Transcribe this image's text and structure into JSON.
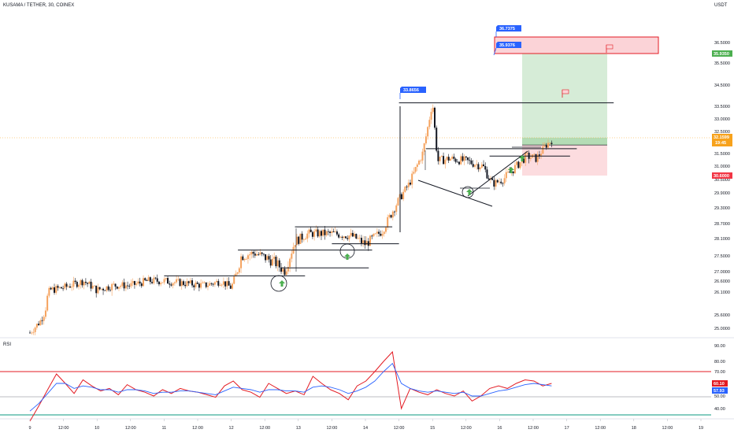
{
  "header": {
    "symbol_title": "KUSAMA / TETHER, 30, COINEX",
    "currency": "USDT",
    "rsi_label": "RSI"
  },
  "colors": {
    "up": "#f5a25d",
    "down": "#131722",
    "rsi_line": "#e31b23",
    "rsi_ma": "#2962ff",
    "rsi_upper_band": "#e31b23",
    "rsi_lower_band": "#089981",
    "target_zone": "#c8e6c9",
    "stop_zone": "#fbd3d7",
    "price_label": "#f7a21c",
    "target_label": "#4caf50",
    "stop_label": "#f23645",
    "callout": "#2962ff",
    "marker_arrow": "#4caf50"
  },
  "chart_data": {
    "type": "candlestick",
    "title": "KUSAMA / TETHER, 30, COINEX",
    "price_axis": {
      "ticks": [
        "36.5000",
        "35.5000",
        "34.5000",
        "33.5000",
        "33.0000",
        "32.5000",
        "31.5000",
        "31.0000",
        "30.5000",
        "29.9000",
        "29.3000",
        "28.7000",
        "28.1000",
        "27.5000",
        "27.0000",
        "26.6000",
        "26.1000",
        "25.6000",
        "25.0000"
      ],
      "range": [
        24.7,
        37.3
      ]
    },
    "time_axis": {
      "labels": [
        "9",
        "12:00",
        "10",
        "12:00",
        "11",
        "12:00",
        "12",
        "12:00",
        "13",
        "12:00",
        "14",
        "12:00",
        "15",
        "12:00",
        "16",
        "12:00",
        "17",
        "12:00",
        "18",
        "12:00",
        "19"
      ]
    },
    "last_price": "32.1599",
    "countdown": "19:45",
    "take_profit_label": "35.9350",
    "stop_loss_label": "30.6000",
    "entry_price": 31.79,
    "callouts": [
      "33.8656",
      "36.7375",
      "35.9376"
    ],
    "channels": [
      {
        "from_time": 4.0,
        "to_time": 8.2,
        "price": 26.82
      },
      {
        "from_time": 6.2,
        "to_time": 10.2,
        "price": 27.7
      },
      {
        "from_time": 7.5,
        "to_time": 10.1,
        "price": 27.12
      },
      {
        "from_time": 7.9,
        "to_time": 10.8,
        "price": 28.57
      },
      {
        "from_time": 9.0,
        "to_time": 11.0,
        "price": 27.92
      },
      {
        "from_time": 11.0,
        "to_time": 17.4,
        "price": 33.66
      },
      {
        "from_time": 11.8,
        "to_time": 16.3,
        "price": 31.72
      },
      {
        "from_time": 13.7,
        "to_time": 16.1,
        "price": 31.4
      }
    ],
    "rsi": {
      "label": "RSI",
      "value": "60.10",
      "ma_value": "57.93",
      "levels": [
        70,
        30
      ],
      "ticks": [
        "90.00",
        "80.00",
        "70.00",
        "60.00",
        "50.00",
        "40.00"
      ],
      "range": [
        32,
        92
      ],
      "series": [
        {
          "name": "RSI",
          "values": [
            30,
            42,
            55,
            68,
            60,
            52,
            63,
            58,
            54,
            56,
            51,
            59,
            55,
            53,
            50,
            55,
            52,
            56,
            54,
            53,
            51,
            49,
            58,
            62,
            55,
            53,
            49,
            60,
            56,
            52,
            54,
            51,
            66,
            60,
            55,
            52,
            47,
            58,
            62,
            70,
            80,
            86,
            40,
            56,
            53,
            51,
            55,
            52,
            50,
            54,
            46,
            50,
            56,
            58,
            56,
            60,
            63,
            62,
            58,
            60
          ]
        },
        {
          "name": "RSI-based MA",
          "values": [
            38,
            44,
            52,
            60,
            60,
            56,
            58,
            57,
            55,
            55,
            53,
            55,
            55,
            54,
            52,
            53,
            53,
            54,
            54,
            53,
            52,
            51,
            54,
            57,
            56,
            55,
            53,
            55,
            55,
            54,
            54,
            53,
            57,
            58,
            57,
            55,
            52,
            54,
            57,
            62,
            70,
            78,
            60,
            56,
            54,
            53,
            54,
            53,
            52,
            53,
            50,
            50,
            52,
            54,
            55,
            57,
            59,
            60,
            59,
            58
          ]
        }
      ]
    }
  }
}
